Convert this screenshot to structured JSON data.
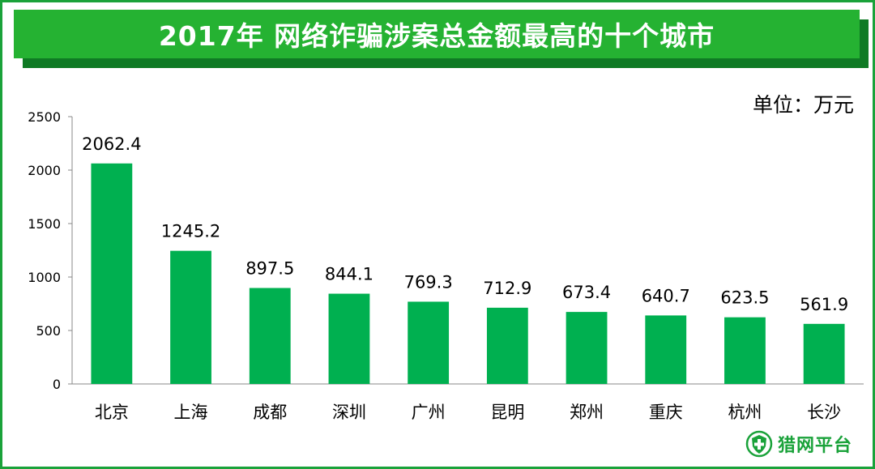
{
  "header": {
    "title": "2017年 网络诈骗涉案总金额最高的十个城市"
  },
  "unit_label": "单位：万元",
  "brand": {
    "name": "猎网平台",
    "icon": "shield-cross-icon",
    "color": "#1aa23a"
  },
  "colors": {
    "bar": "#00b050",
    "banner": "#25b232",
    "banner_shadow": "#0f7a24"
  },
  "chart_data": {
    "type": "bar",
    "title": "2017年 网络诈骗涉案总金额最高的十个城市",
    "ylabel": "",
    "xlabel": "",
    "unit": "单位：万元",
    "categories": [
      "北京",
      "上海",
      "成都",
      "深圳",
      "广州",
      "昆明",
      "郑州",
      "重庆",
      "杭州",
      "长沙"
    ],
    "values": [
      2062.4,
      1245.2,
      897.5,
      844.1,
      769.3,
      712.9,
      673.4,
      640.7,
      623.5,
      561.9
    ],
    "data_labels": [
      "2062.4",
      "1245.2",
      "897.5",
      "844.1",
      "769.3",
      "712.9",
      "673.4",
      "640.7",
      "623.5",
      "561.9"
    ],
    "yticks": [
      0,
      500,
      1000,
      1500,
      2000,
      2500
    ],
    "ylim": [
      0,
      2500
    ],
    "grid": false,
    "legend": "none"
  }
}
